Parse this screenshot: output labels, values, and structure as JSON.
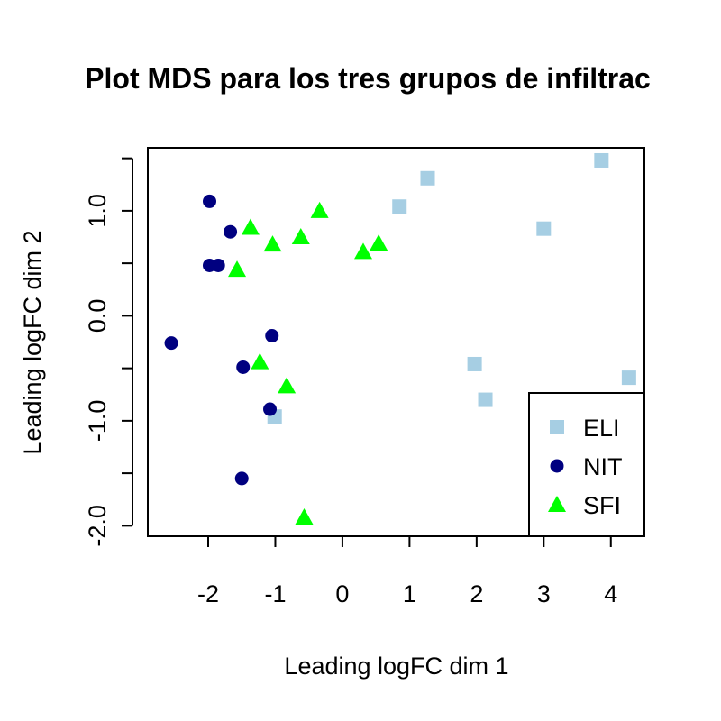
{
  "chart_data": {
    "type": "scatter",
    "title": "Plot MDS para los tres grupos de infiltrac",
    "xlabel": "Leading logFC dim 1",
    "ylabel": "Leading logFC dim 2",
    "xlim": [
      -2.9,
      4.5
    ],
    "ylim": [
      -2.1,
      1.6
    ],
    "x_ticks": [
      -2,
      -1,
      0,
      1,
      2,
      3,
      4
    ],
    "x_tick_labels": [
      "-2",
      "-1",
      "0",
      "1",
      "2",
      "3",
      "4"
    ],
    "y_ticks": [
      -2.0,
      -1.5,
      -1.0,
      -0.5,
      0.0,
      0.5,
      1.0,
      1.5
    ],
    "y_tick_labels": [
      "-2.0",
      "",
      "-1.0",
      "",
      "0.0",
      "",
      "1.0",
      ""
    ],
    "grid": false,
    "legend_position": "bottom-right",
    "series": [
      {
        "name": "ELI",
        "marker": "square",
        "color": "#a6cee3",
        "points": [
          [
            0.85,
            1.04
          ],
          [
            1.27,
            1.31
          ],
          [
            3.86,
            1.48
          ],
          [
            3.0,
            0.83
          ],
          [
            1.97,
            -0.46
          ],
          [
            2.13,
            -0.8
          ],
          [
            4.27,
            -0.59
          ],
          [
            -1.01,
            -0.96
          ]
        ]
      },
      {
        "name": "NIT",
        "marker": "circle",
        "color": "#000080",
        "points": [
          [
            -1.98,
            1.09
          ],
          [
            -1.67,
            0.8
          ],
          [
            -1.98,
            0.48
          ],
          [
            -1.85,
            0.48
          ],
          [
            -2.55,
            -0.26
          ],
          [
            -1.05,
            -0.19
          ],
          [
            -1.48,
            -0.49
          ],
          [
            -1.08,
            -0.89
          ],
          [
            -1.5,
            -1.55
          ]
        ]
      },
      {
        "name": "SFI",
        "marker": "triangle",
        "color": "#00ff00",
        "points": [
          [
            -1.37,
            0.84
          ],
          [
            -0.34,
            1.0
          ],
          [
            -1.04,
            0.68
          ],
          [
            -0.62,
            0.75
          ],
          [
            0.31,
            0.61
          ],
          [
            0.54,
            0.69
          ],
          [
            -1.57,
            0.44
          ],
          [
            -1.23,
            -0.44
          ],
          [
            -0.83,
            -0.67
          ],
          [
            -0.57,
            -1.92
          ]
        ]
      }
    ]
  }
}
